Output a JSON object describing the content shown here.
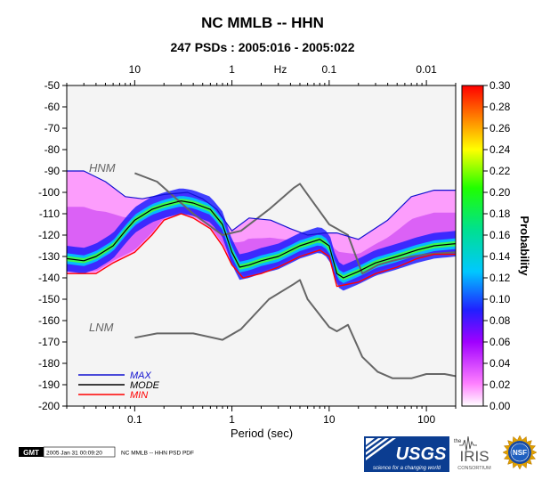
{
  "chart_data": {
    "type": "heatmap",
    "title": "NC MMLB -- HHN",
    "subtitle": "247 PSDs : 2005:016 - 2005:022",
    "xlabel": "Period (sec)",
    "top_axis_label": "Hz",
    "colorbar_label": "Probability",
    "x_scale": "log",
    "xlim": [
      0.02,
      200
    ],
    "ylim": [
      -200,
      -50
    ],
    "x_ticks": [
      {
        "value": 0.1,
        "label": "0.1"
      },
      {
        "value": 1,
        "label": "1"
      },
      {
        "value": 10,
        "label": "10"
      },
      {
        "value": 100,
        "label": "100"
      }
    ],
    "top_ticks": [
      {
        "period": 0.1,
        "label": "10"
      },
      {
        "period": 1,
        "label": "1"
      },
      {
        "period": 10,
        "label": "0.1"
      },
      {
        "period": 100,
        "label": "0.01"
      }
    ],
    "y_ticks": [
      -50,
      -60,
      -70,
      -80,
      -90,
      -100,
      -110,
      -120,
      -130,
      -140,
      -150,
      -160,
      -170,
      -180,
      -190,
      -200
    ],
    "colorbar_ticks": [
      "0.00",
      "0.02",
      "0.04",
      "0.06",
      "0.08",
      "0.10",
      "0.12",
      "0.14",
      "0.16",
      "0.18",
      "0.20",
      "0.22",
      "0.24",
      "0.26",
      "0.28",
      "0.30"
    ],
    "colorbar_range": [
      0,
      0.3
    ],
    "legend": [
      {
        "name": "MAX",
        "color": "#1010d0"
      },
      {
        "name": "MODE",
        "color": "#000000"
      },
      {
        "name": "MIN",
        "color": "#ff0000"
      }
    ],
    "legend_position": "bottom-left",
    "model_labels": {
      "high": "HNM",
      "low": "LNM"
    },
    "model_color": "#666666",
    "series": [
      {
        "name": "MAX",
        "points": [
          [
            0.02,
            -90
          ],
          [
            0.03,
            -90
          ],
          [
            0.05,
            -95
          ],
          [
            0.08,
            -102
          ],
          [
            0.12,
            -103
          ],
          [
            0.2,
            -101
          ],
          [
            0.35,
            -100
          ],
          [
            0.5,
            -103
          ],
          [
            0.7,
            -108
          ],
          [
            1,
            -118
          ],
          [
            1.5,
            -112
          ],
          [
            2.5,
            -113
          ],
          [
            4,
            -117
          ],
          [
            6,
            -120
          ],
          [
            9,
            -119
          ],
          [
            12,
            -119
          ],
          [
            20,
            -122
          ],
          [
            40,
            -113
          ],
          [
            70,
            -102
          ],
          [
            120,
            -99
          ],
          [
            200,
            -99
          ]
        ]
      },
      {
        "name": "MODE",
        "points": [
          [
            0.02,
            -131
          ],
          [
            0.03,
            -132
          ],
          [
            0.04,
            -130
          ],
          [
            0.06,
            -125
          ],
          [
            0.08,
            -118
          ],
          [
            0.1,
            -113
          ],
          [
            0.15,
            -108
          ],
          [
            0.2,
            -106
          ],
          [
            0.3,
            -104
          ],
          [
            0.4,
            -105
          ],
          [
            0.6,
            -108
          ],
          [
            0.8,
            -115
          ],
          [
            1,
            -128
          ],
          [
            1.2,
            -135
          ],
          [
            1.5,
            -134
          ],
          [
            2,
            -132
          ],
          [
            3,
            -130
          ],
          [
            5,
            -125
          ],
          [
            8,
            -122
          ],
          [
            10,
            -125
          ],
          [
            12,
            -138
          ],
          [
            14,
            -140
          ],
          [
            20,
            -137
          ],
          [
            30,
            -133
          ],
          [
            50,
            -130
          ],
          [
            80,
            -127
          ],
          [
            120,
            -125
          ],
          [
            200,
            -124
          ]
        ]
      },
      {
        "name": "MIN",
        "points": [
          [
            0.02,
            -138
          ],
          [
            0.04,
            -138
          ],
          [
            0.06,
            -133
          ],
          [
            0.1,
            -128
          ],
          [
            0.15,
            -120
          ],
          [
            0.2,
            -113
          ],
          [
            0.3,
            -110
          ],
          [
            0.4,
            -112
          ],
          [
            0.6,
            -117
          ],
          [
            0.8,
            -125
          ],
          [
            1,
            -134
          ],
          [
            1.3,
            -140
          ],
          [
            2,
            -138
          ],
          [
            3,
            -135
          ],
          [
            5,
            -130
          ],
          [
            8,
            -127
          ],
          [
            10,
            -130
          ],
          [
            12,
            -144
          ],
          [
            20,
            -142
          ],
          [
            30,
            -138
          ],
          [
            50,
            -135
          ],
          [
            80,
            -131
          ],
          [
            120,
            -129
          ],
          [
            200,
            -129
          ]
        ]
      },
      {
        "name": "HNM",
        "points": [
          [
            0.1,
            -91
          ],
          [
            0.17,
            -95
          ],
          [
            0.4,
            -110
          ],
          [
            0.8,
            -120
          ],
          [
            1.24,
            -118
          ],
          [
            2.4,
            -108
          ],
          [
            4.3,
            -98
          ],
          [
            5,
            -96
          ],
          [
            6,
            -101
          ],
          [
            10,
            -115
          ],
          [
            12,
            -117
          ],
          [
            15.6,
            -120
          ],
          [
            21.9,
            -138
          ],
          [
            31.6,
            -134
          ],
          [
            45,
            -132
          ],
          [
            70,
            -130
          ],
          [
            100,
            -129
          ],
          [
            200,
            -128
          ]
        ]
      },
      {
        "name": "LNM",
        "points": [
          [
            0.1,
            -168
          ],
          [
            0.17,
            -166
          ],
          [
            0.4,
            -166
          ],
          [
            0.8,
            -169
          ],
          [
            1.24,
            -164
          ],
          [
            2.4,
            -150
          ],
          [
            4.3,
            -143
          ],
          [
            5,
            -141
          ],
          [
            6,
            -150
          ],
          [
            10,
            -163
          ],
          [
            12,
            -165
          ],
          [
            15.6,
            -162
          ],
          [
            21.9,
            -177
          ],
          [
            31.6,
            -184
          ],
          [
            45,
            -187
          ],
          [
            70,
            -187
          ],
          [
            100,
            -185
          ],
          [
            154,
            -185
          ],
          [
            200,
            -186
          ]
        ]
      }
    ]
  },
  "footer": {
    "gmt_badge": "GMT",
    "timestamp": "2005 Jan 31 00:09:20",
    "caption": "NC MMLB -- HHN PSD PDF",
    "usgs_text": "USGS",
    "usgs_tagline": "science for a changing world",
    "iris_small": "the",
    "iris_text": "IRIS",
    "iris_sub": "CONSORTIUM",
    "nsf_text": "NSF"
  }
}
